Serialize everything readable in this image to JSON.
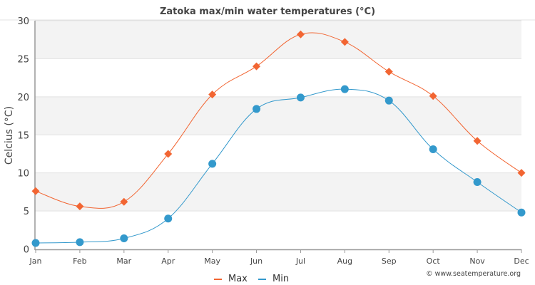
{
  "chart_data": {
    "type": "line",
    "title": "Zatoka max/min water temperatures (°C)",
    "xlabel": "",
    "ylabel": "Celcius (°C)",
    "ylim": [
      0,
      30
    ],
    "yticks": [
      0,
      5,
      10,
      15,
      20,
      25,
      30
    ],
    "categories": [
      "Jan",
      "Feb",
      "Mar",
      "Apr",
      "May",
      "Jun",
      "Jul",
      "Aug",
      "Sep",
      "Oct",
      "Nov",
      "Dec"
    ],
    "series": [
      {
        "name": "Max",
        "color": "#f26532",
        "marker": "diamond",
        "values": [
          7.6,
          5.6,
          6.2,
          12.5,
          20.3,
          24.0,
          28.2,
          27.2,
          23.3,
          20.1,
          14.2,
          10.0
        ]
      },
      {
        "name": "Min",
        "color": "#3399cc",
        "marker": "circle",
        "values": [
          0.8,
          0.9,
          1.4,
          4.0,
          11.2,
          18.4,
          19.9,
          21.0,
          19.5,
          13.1,
          8.8,
          4.8
        ]
      }
    ],
    "grid": true,
    "legend": "bottom-center",
    "credit": "© www.seatemperature.org"
  }
}
